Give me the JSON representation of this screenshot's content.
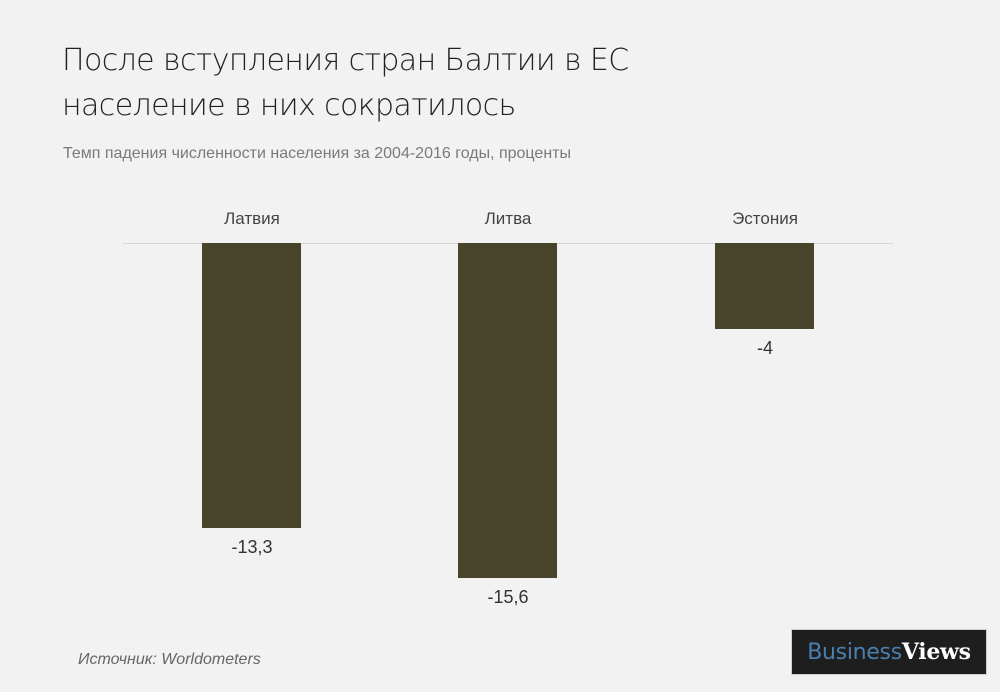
{
  "title": {
    "line1": "После вступления стран Балтии в ЕС",
    "line2": "население в них сократилось"
  },
  "subtitle": "Темп падения численности населения за 2004-2016 годы, проценты",
  "bars": [
    {
      "label": "Латвия",
      "value": -13.3,
      "value_label": "-13,3"
    },
    {
      "label": "Литва",
      "value": -15.6,
      "value_label": "-15,6"
    },
    {
      "label": "Эстония",
      "value": -4,
      "value_label": "-4"
    }
  ],
  "source": "Источник: Worldometers",
  "logo": {
    "part1": "Business",
    "part2": "Views"
  },
  "colors": {
    "bar": "#48432b",
    "background": "#f2f2f2",
    "logo_bg": "#1e1e1e",
    "logo_blue": "#4a7fb0"
  },
  "chart_data": {
    "type": "bar",
    "title": "После вступления стран Балтии в ЕС население в них сократилось",
    "subtitle": "Темп падения численности населения за 2004-2016 годы, проценты",
    "categories": [
      "Латвия",
      "Литва",
      "Эстония"
    ],
    "values": [
      -13.3,
      -15.6,
      -4
    ],
    "xlabel": "",
    "ylabel": "",
    "ylim": [
      -16,
      0
    ],
    "grid": false,
    "data_labels": [
      "-13,3",
      "-15,6",
      "-4"
    ],
    "category_labels_position": "top",
    "source": "Источник: Worldometers"
  }
}
